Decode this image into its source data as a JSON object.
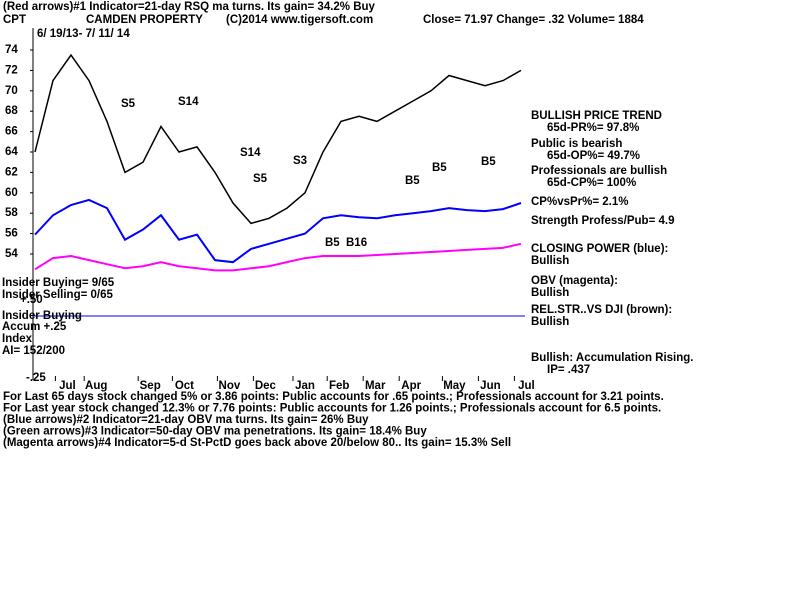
{
  "header": {
    "line1": "(Red arrows)#1 Indicator=21-day RSQ ma turns. Its gain= 34.2% Buy",
    "ticker": "CPT",
    "company": "CAMDEN PROPERTY",
    "copyright": "(C)2014 www.tigersoft.com",
    "quote": "Close=  71.97  Change= .32 Volume= 1884",
    "range": "6/ 19/13- 7/ 11/ 14"
  },
  "chart_data": {
    "type": "line",
    "xlim": [
      0,
      27.5
    ],
    "ylim": [
      52,
      76
    ],
    "yticks": [
      54,
      56,
      58,
      60,
      62,
      64,
      66,
      68,
      70,
      72,
      74
    ],
    "xticks": [
      {
        "value": 1.8,
        "label": "Jul"
      },
      {
        "value": 3.4,
        "label": "Aug"
      },
      {
        "value": 6.4,
        "label": "Sep"
      },
      {
        "value": 8.3,
        "label": "Oct"
      },
      {
        "value": 10.8,
        "label": "Nov"
      },
      {
        "value": 12.8,
        "label": "Dec"
      },
      {
        "value": 15,
        "label": "Jan"
      },
      {
        "value": 16.9,
        "label": "Feb"
      },
      {
        "value": 18.9,
        "label": "Mar"
      },
      {
        "value": 20.9,
        "label": "Apr"
      },
      {
        "value": 23.3,
        "label": "May"
      },
      {
        "value": 25.3,
        "label": "Jun"
      },
      {
        "value": 27.3,
        "label": "Jul"
      }
    ],
    "series": [
      {
        "color": "#000000",
        "values": [
          64,
          71,
          73.5,
          71,
          67,
          62,
          63,
          66.5,
          64,
          64.5,
          62,
          59,
          57,
          57.5,
          58.5,
          60,
          64,
          67,
          67.5,
          67,
          68,
          69,
          70,
          71.5,
          71,
          70.5,
          71,
          72
        ]
      },
      {
        "color": "#0000ff",
        "values": [
          55.9,
          57.8,
          58.8,
          59.3,
          58.5,
          55.4,
          56.4,
          57.8,
          55.4,
          55.9,
          53.4,
          53.2,
          54.5,
          55.0,
          55.5,
          56.0,
          57.5,
          57.8,
          57.6,
          57.5,
          57.8,
          58.0,
          58.2,
          58.5,
          58.3,
          58.2,
          58.4,
          59.0
        ]
      },
      {
        "color": "#ff00ff",
        "values": [
          52.5,
          53.6,
          53.8,
          53.4,
          53.0,
          52.6,
          52.8,
          53.2,
          52.8,
          52.6,
          52.4,
          52.4,
          52.6,
          52.8,
          53.2,
          53.6,
          53.8,
          53.8,
          53.8,
          53.9,
          54.0,
          54.1,
          54.2,
          54.3,
          54.4,
          54.5,
          54.6,
          55.0
        ]
      }
    ],
    "annotations": [
      "S5",
      "S14",
      "S14",
      "S3",
      "S5",
      "B5",
      "B16",
      "B5",
      "B5",
      "B5"
    ]
  },
  "left_labels": [
    "Insider Buying= 9/65",
    "Insider Selling= 0/65",
    "+.50",
    "Insider Buying",
    "Accum  +.25",
    "Index",
    "AI= 152/200",
    "-.25"
  ],
  "right_labels": [
    "BULLISH PRICE TREND",
    "65d-PR%= 97.8%",
    "Public is bearish",
    "65d-OP%= 49.7%",
    "Professionals are bullish",
    "65d-CP%= 100%",
    "CP%vsPr%=  2.1%",
    "Strength Profess/Pub= 4.9",
    "CLOSING POWER (blue):",
    "Bullish",
    "OBV (magenta):",
    "Bullish",
    "REL.STR..VS DJI (brown):",
    "Bullish",
    "Bullish: Accumulation Rising.",
    "IP=  .437"
  ],
  "footer": [
    "For Last 65 days stock changed  5% or  3.86 points:  Public accounts for  .65 points.;  Professionals account for  3.21 points.",
    "For Last year stock changed  12.3% or  7.76 points:  Public accounts for  1.26 points.;  Professionals account for  6.5 points.",
    "(Blue arrows)#2 Indicator=21-day OBV ma turns. Its gain= 26% Buy",
    "(Green arrows)#3 Indicator=50-day OBV ma penetrations. Its gain= 18.4% Buy",
    "(Magenta arrows)#4 Indicator=5-d St-PctD goes back above 20/below 80.. Its gain= 15.3% Sell"
  ]
}
